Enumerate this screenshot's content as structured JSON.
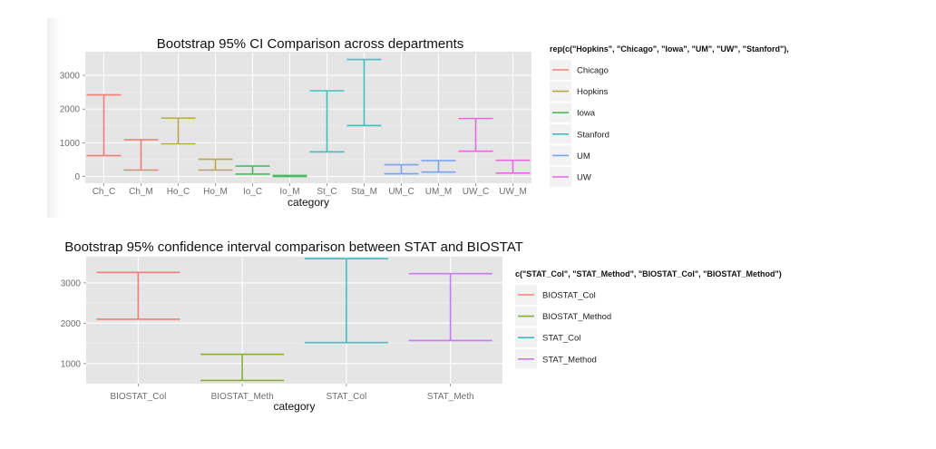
{
  "chart_data": [
    {
      "type": "errorbar",
      "title": "Bootstrap 95% CI Comparison across departments",
      "xlabel": "category",
      "ylabel": "",
      "ylim": [
        -200,
        3700
      ],
      "yticks": [
        0,
        1000,
        2000,
        3000
      ],
      "grid": true,
      "legend_placement": "right",
      "legend_title": "rep(c(\"Hopkins\", \"Chicago\", \"Iowa\", \"UM\", \"UW\", \"Stanford\"),",
      "legend": [
        {
          "name": "Chicago",
          "color": "#f07f78"
        },
        {
          "name": "Hopkins",
          "color": "#b7a949"
        },
        {
          "name": "Iowa",
          "color": "#4cbb5f"
        },
        {
          "name": "Stanford",
          "color": "#3fc0c0"
        },
        {
          "name": "UM",
          "color": "#7aa3ee"
        },
        {
          "name": "UW",
          "color": "#e46bdd"
        }
      ],
      "categories": [
        "Ch_C",
        "Ch_M",
        "Ho_C",
        "Ho_M",
        "Io_C",
        "Io_M",
        "St_C",
        "Sta_M",
        "UM_C",
        "UM_M",
        "UW_C",
        "UW_M"
      ],
      "intervals": [
        {
          "category": "Ch_C",
          "group": "Chicago",
          "low": 620,
          "high": 2420
        },
        {
          "category": "Ch_M",
          "group": "Chicago",
          "low": 190,
          "high": 1090
        },
        {
          "category": "Ho_C",
          "group": "Hopkins",
          "low": 970,
          "high": 1730
        },
        {
          "category": "Ho_M",
          "group": "Hopkins",
          "low": 190,
          "high": 510
        },
        {
          "category": "Io_C",
          "group": "Iowa",
          "low": 70,
          "high": 310
        },
        {
          "category": "Io_M",
          "group": "Iowa",
          "low": 0,
          "high": 30
        },
        {
          "category": "St_C",
          "group": "Stanford",
          "low": 730,
          "high": 2540
        },
        {
          "category": "Sta_M",
          "group": "Stanford",
          "low": 1510,
          "high": 3470
        },
        {
          "category": "UM_C",
          "group": "UM",
          "low": 80,
          "high": 350
        },
        {
          "category": "UM_M",
          "group": "UM",
          "low": 130,
          "high": 470
        },
        {
          "category": "UW_C",
          "group": "UW",
          "low": 750,
          "high": 1720
        },
        {
          "category": "UW_M",
          "group": "UW",
          "low": 100,
          "high": 480
        }
      ]
    },
    {
      "type": "errorbar",
      "title": "Bootstrap 95% confidence interval comparison between STAT and BIOSTAT",
      "xlabel": "category",
      "ylabel": "",
      "ylim": [
        500,
        3650
      ],
      "yticks": [
        1000,
        2000,
        3000
      ],
      "grid": true,
      "legend_placement": "right",
      "legend_title": "c(\"STAT_Col\", \"STAT_Method\", \"BIOSTAT_Col\", \"BIOSTAT_Method\")",
      "legend": [
        {
          "name": "BIOSTAT_Col",
          "color": "#f07f78"
        },
        {
          "name": "BIOSTAT_Method",
          "color": "#8aae3c"
        },
        {
          "name": "STAT_Col",
          "color": "#3fc0c0"
        },
        {
          "name": "STAT_Method",
          "color": "#c57af0"
        }
      ],
      "categories": [
        "BIOSTAT_Col",
        "BIOSTAT_Meth",
        "STAT_Col",
        "STAT_Meth"
      ],
      "intervals": [
        {
          "category": "BIOSTAT_Col",
          "group": "BIOSTAT_Col",
          "low": 2100,
          "high": 3260
        },
        {
          "category": "BIOSTAT_Meth",
          "group": "BIOSTAT_Method",
          "low": 580,
          "high": 1230
        },
        {
          "category": "STAT_Col",
          "group": "STAT_Col",
          "low": 1520,
          "high": 3600
        },
        {
          "category": "STAT_Meth",
          "group": "STAT_Method",
          "low": 1570,
          "high": 3230
        }
      ]
    }
  ]
}
